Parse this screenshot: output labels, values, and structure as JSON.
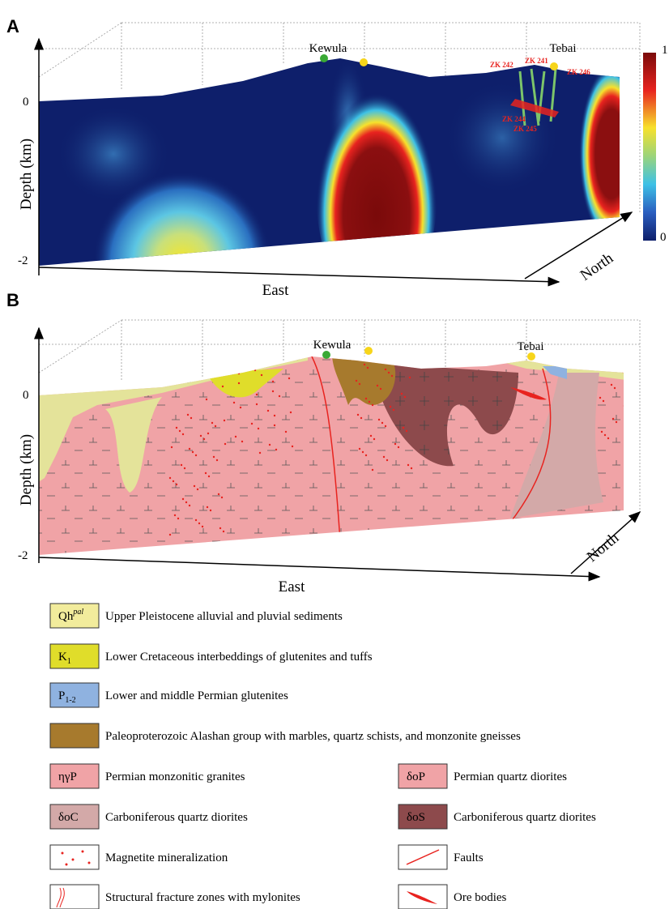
{
  "panel_a": {
    "label": "A",
    "y_axis_label": "Depth (km)",
    "depth_labels": [
      "0",
      "-2"
    ],
    "x_axis_label": "East",
    "z_axis_label": "North",
    "places": [
      "Kewula",
      "Tebai"
    ],
    "drill_holes": [
      "ZK 242",
      "ZK 241",
      "ZK 246",
      "ZK 244",
      "ZK 245"
    ],
    "colorbar_labels": [
      "1",
      "0"
    ]
  },
  "panel_b": {
    "label": "B",
    "y_axis_label": "Depth (km)",
    "depth_labels": [
      "0",
      "-2"
    ],
    "x_axis_label": "East",
    "z_axis_label": "North",
    "places": [
      "Kewula",
      "Tebai"
    ]
  },
  "legend": [
    {
      "symbol": "Qh",
      "symbol_sup": "pal",
      "text": "Upper Pleistocene alluvial and pluvial  sediments"
    },
    {
      "symbol": "K",
      "symbol_sub": "1",
      "text": "Lower Cretaceous interbeddings of glutenites and tuffs"
    },
    {
      "symbol": "P",
      "symbol_sub": "1-2",
      "text": "Lower and middle Permian glutenites"
    },
    {
      "text": "Paleoproterozoic Alashan group with marbles, quartz schists, and monzonite gneisses"
    },
    {
      "symbol": "ηγP",
      "text": "Permian monzonitic granites"
    },
    {
      "symbol": "δoP",
      "text": "Permian quartz diorites"
    },
    {
      "symbol": "δoC",
      "text": "Carboniferous quartz diorites"
    },
    {
      "symbol": "δoS",
      "text": "Carboniferous quartz diorites"
    },
    {
      "text": "Magnetite mineralization"
    },
    {
      "text": "Faults"
    },
    {
      "text": "Structural fracture zones with mylonites"
    },
    {
      "text": "Ore bodies"
    }
  ]
}
